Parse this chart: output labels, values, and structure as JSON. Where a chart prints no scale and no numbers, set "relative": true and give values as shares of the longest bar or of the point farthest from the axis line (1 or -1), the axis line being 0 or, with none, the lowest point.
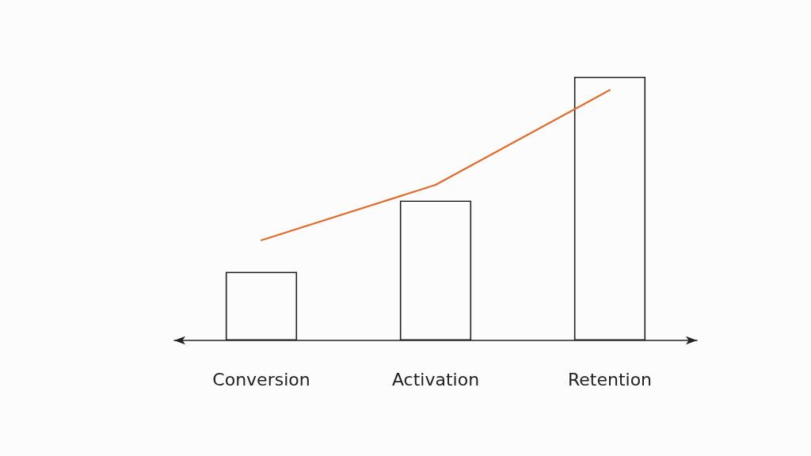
{
  "chart_data": {
    "type": "bar",
    "relative": true,
    "categories": [
      "Conversion",
      "Activation",
      "Retention"
    ],
    "series": [
      {
        "color": "#222222",
        "values": [
          0.26,
          0.53,
          1
        ]
      },
      {
        "type": "line",
        "color": "#e06a2c",
        "values": [
          0.38,
          0.59,
          0.95
        ]
      }
    ],
    "marker": "none",
    "line_style": "solid",
    "grid": false
  }
}
